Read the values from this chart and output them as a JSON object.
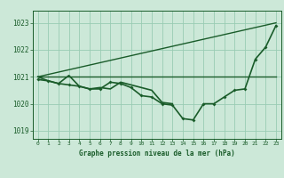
{
  "xlabel": "Graphe pression niveau de la mer (hPa)",
  "background_color": "#cce8d8",
  "grid_color": "#99ccb3",
  "line_color": "#1a5c2a",
  "text_color": "#1a5c2a",
  "ylim": [
    1018.7,
    1023.45
  ],
  "yticks": [
    1019,
    1020,
    1021,
    1022,
    1023
  ],
  "xticks": [
    0,
    1,
    2,
    3,
    4,
    5,
    6,
    7,
    8,
    9,
    10,
    11,
    12,
    13,
    14,
    15,
    16,
    17,
    18,
    19,
    20,
    21,
    22,
    23
  ],
  "x_main": [
    0,
    1,
    2,
    3,
    4,
    5,
    6,
    7,
    8,
    9,
    10,
    11,
    12,
    13,
    14,
    15,
    16,
    17,
    18,
    19,
    20,
    21,
    22,
    23
  ],
  "y_main": [
    1020.9,
    1020.85,
    1020.75,
    1020.7,
    1020.65,
    1020.55,
    1020.55,
    1020.8,
    1020.75,
    1020.6,
    1020.3,
    1020.25,
    1020.0,
    1019.95,
    1019.45,
    1019.4,
    1020.0,
    1020.0,
    1020.25,
    1020.5,
    1020.55,
    1021.65,
    1022.1,
    1022.9
  ],
  "x_sec": [
    0,
    1,
    2,
    3,
    4,
    5,
    6,
    7,
    8,
    9,
    10,
    11,
    12,
    13
  ],
  "y_sec": [
    1021.0,
    1020.85,
    1020.75,
    1021.05,
    1020.65,
    1020.55,
    1020.6,
    1020.55,
    1020.8,
    1020.7,
    1020.6,
    1020.5,
    1020.05,
    1020.0
  ],
  "horiz_line": [
    1021.0,
    1021.0
  ],
  "diag_line_y": [
    1021.0,
    1023.0
  ],
  "figsize": [
    3.2,
    2.0
  ],
  "dpi": 100
}
